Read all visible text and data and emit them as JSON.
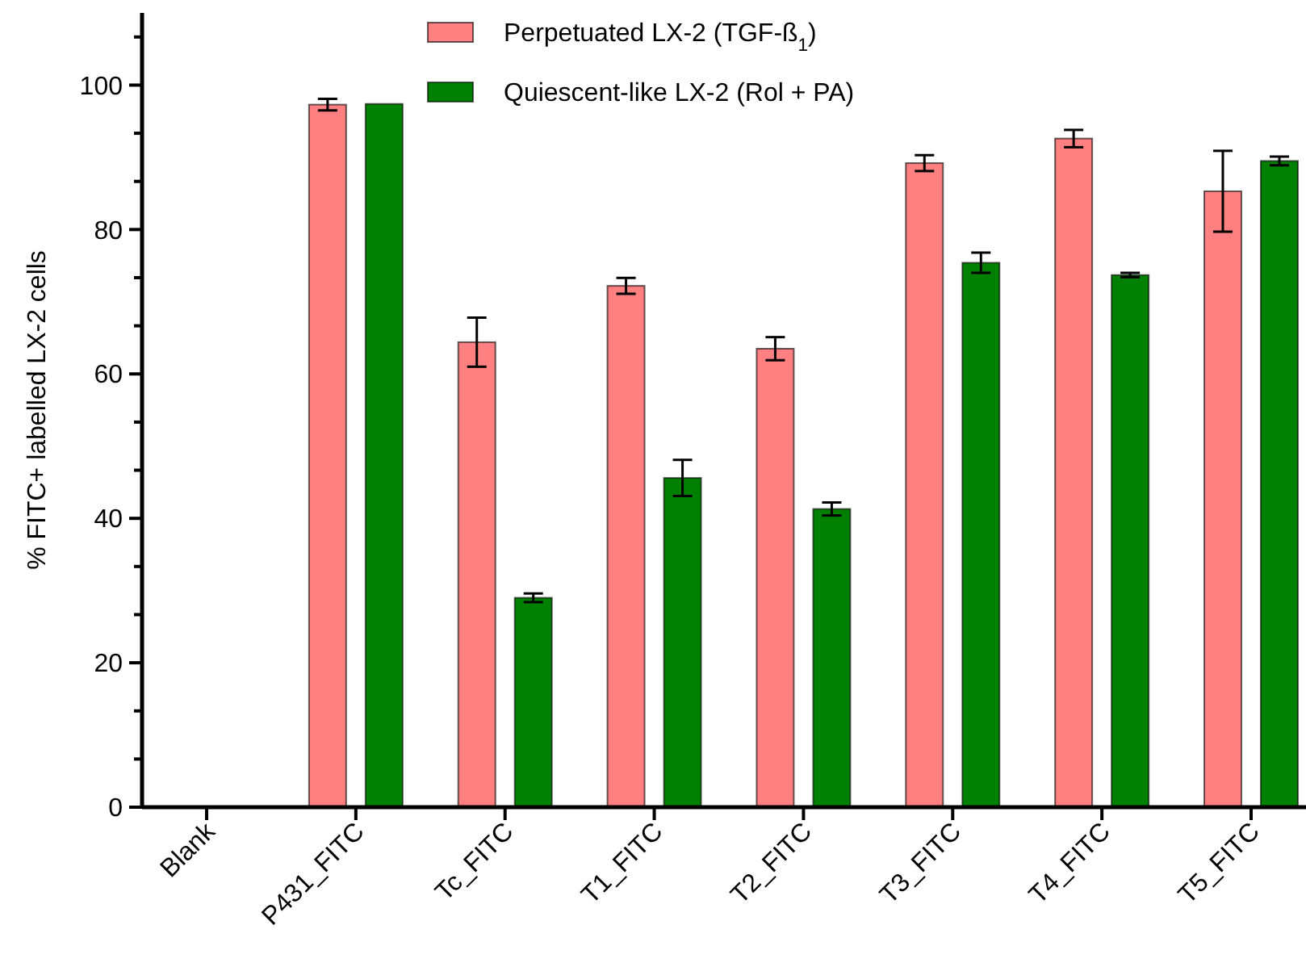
{
  "chart_data": {
    "type": "bar",
    "ylabel": "% FITC+ labelled LX-2 cells",
    "categories": [
      "Blank",
      "P431_FITC",
      "Tc_FITC",
      "T1_FITC",
      "T2_FITC",
      "T3_FITC",
      "T4_FITC",
      "T5_FITC"
    ],
    "series": [
      {
        "name": "Perpetuated LX-2 (TGF-ß$_{1}$)",
        "color": "#ff8080",
        "values": [
          null,
          97.3,
          64.4,
          72.2,
          63.5,
          89.2,
          92.6,
          85.3
        ],
        "errors": [
          null,
          0.8,
          3.4,
          1.1,
          1.6,
          1.1,
          1.2,
          5.6
        ]
      },
      {
        "name": "Quiescent-like LX-2 (Rol + PA)",
        "color": "#008000",
        "values": [
          null,
          97.4,
          29.0,
          45.6,
          41.3,
          75.4,
          73.7,
          89.5
        ],
        "errors": [
          null,
          null,
          0.6,
          2.5,
          0.9,
          1.4,
          0.3,
          0.6
        ]
      }
    ],
    "ylim": [
      0,
      110
    ],
    "yticks": [
      0,
      {
        "value": 6.667,
        "label": null
      },
      {
        "value": 13.333,
        "label": null
      },
      20,
      {
        "value": 26.667,
        "label": null
      },
      {
        "value": 33.333,
        "label": null
      },
      40,
      {
        "value": 46.667,
        "label": null
      },
      {
        "value": 53.333,
        "label": null
      },
      60,
      {
        "value": 66.667,
        "label": null
      },
      {
        "value": 73.333,
        "label": null
      },
      80,
      {
        "value": 86.667,
        "label": null
      },
      {
        "value": 93.333,
        "label": null
      },
      100,
      {
        "value": 106.667,
        "label": null
      }
    ],
    "legend": "top",
    "grid": false
  }
}
